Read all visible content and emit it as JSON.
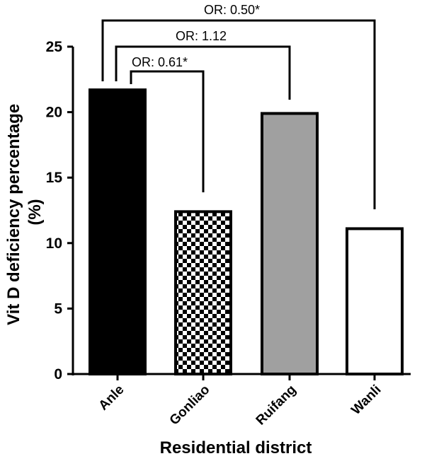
{
  "chart_data": {
    "type": "bar",
    "categories": [
      "Anle",
      "Gonliao",
      "Ruifang",
      "Wanli"
    ],
    "values": [
      21.7,
      12.4,
      19.9,
      11.1
    ],
    "bar_fills": [
      "solid-black",
      "checkerboard",
      "solid-gray",
      "white"
    ],
    "colors": {
      "black": "#000000",
      "gray": "#a0a0a0",
      "white": "#ffffff"
    },
    "xlabel": "Residential district",
    "ylabel_line1": "Vit D deficiency percentage",
    "ylabel_line2": "(%)",
    "ylim": [
      0,
      25
    ],
    "yticks": [
      "0",
      "5",
      "10",
      "15",
      "20",
      "25"
    ],
    "annotations": [
      {
        "from": "Anle",
        "to": "Gonliao",
        "label": "OR: 0.61*"
      },
      {
        "from": "Anle",
        "to": "Ruifang",
        "label": "OR: 1.12"
      },
      {
        "from": "Anle",
        "to": "Wanli",
        "label": "OR: 0.50*"
      }
    ],
    "grid": false,
    "legend": "none"
  }
}
